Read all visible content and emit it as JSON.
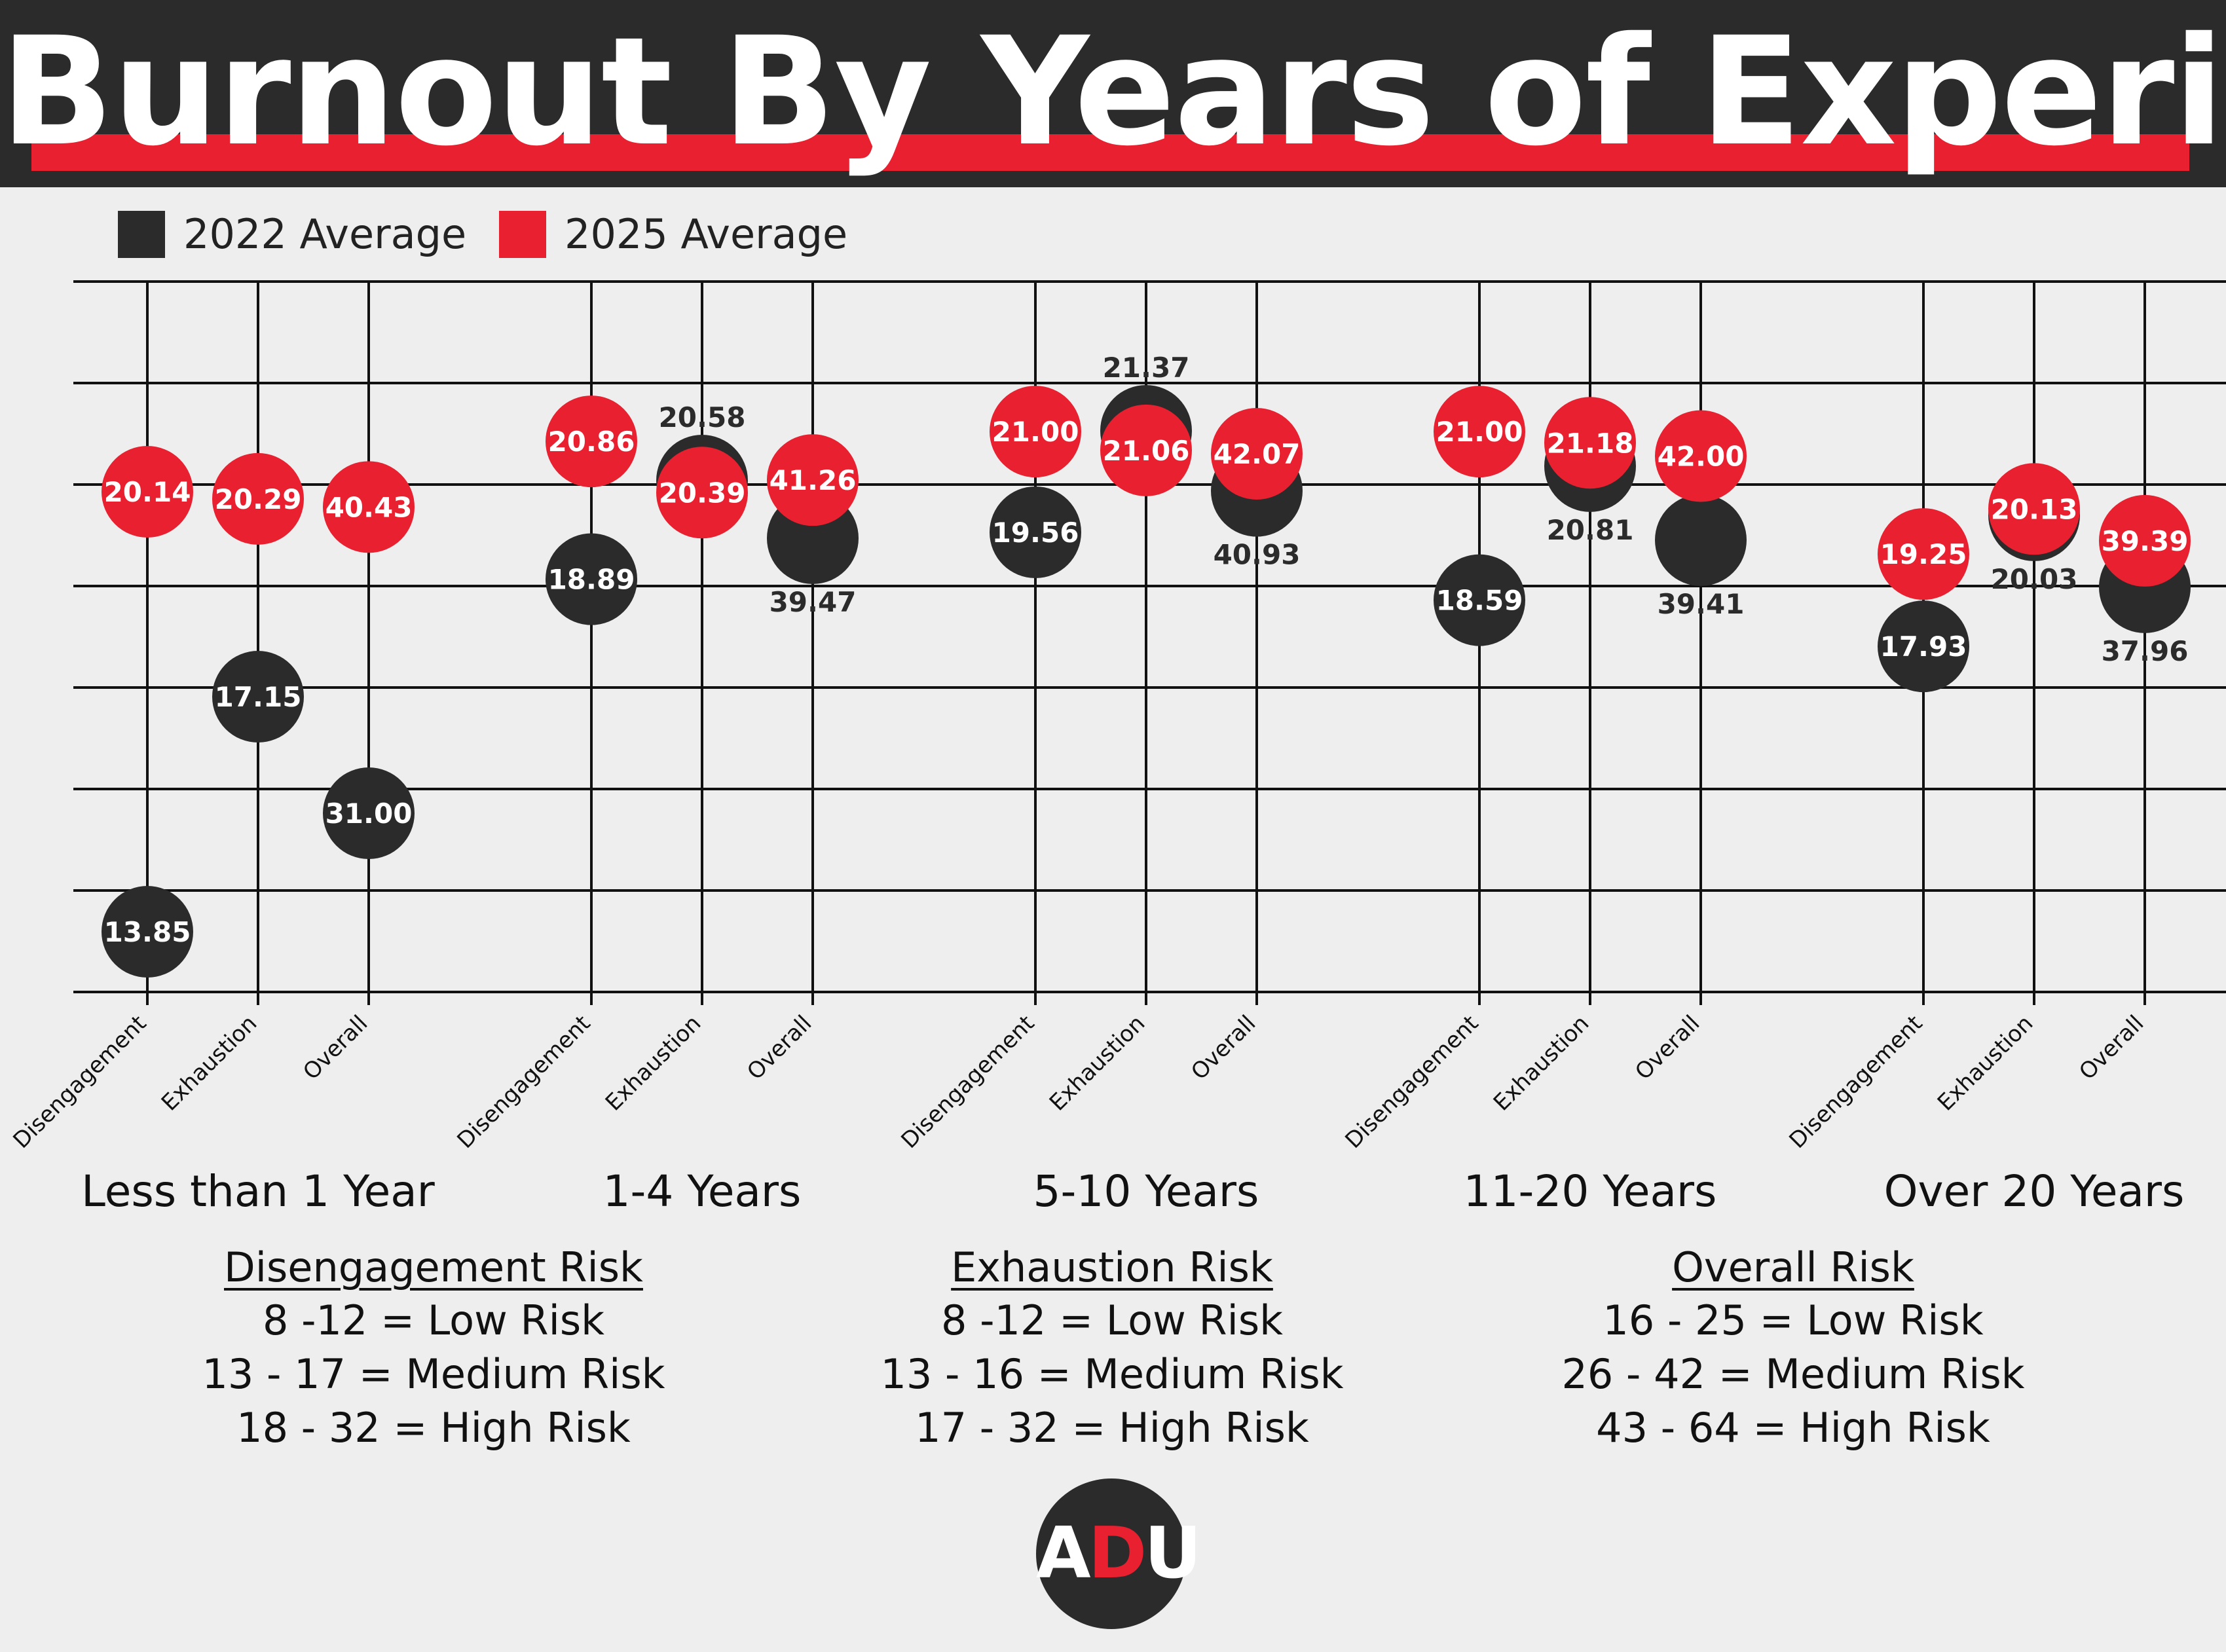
{
  "title": "Burnout By Years of Experience",
  "legend": {
    "items": [
      {
        "label": "2022 Average",
        "color": "#2b2b2b"
      },
      {
        "label": "2025 Average",
        "color": "#e8202f"
      }
    ]
  },
  "colors": {
    "dark": "#2b2b2b",
    "red": "#e8202f",
    "background": "#eeeeee",
    "white": "#ffffff"
  },
  "chart_data": {
    "type": "scatter",
    "title": "Burnout By Years of Experience",
    "groups": [
      "Less than 1 Year",
      "1-4 Years",
      "5-10 Years",
      "11-20 Years",
      "Over 20 Years"
    ],
    "measures": [
      "Disengagement",
      "Exhaustion",
      "Overall"
    ],
    "grid": true,
    "legend_position": "top-left",
    "series": [
      {
        "name": "2022 Average",
        "color": "#2b2b2b",
        "values": [
          [
            13.85,
            17.15,
            31.0
          ],
          [
            18.89,
            20.58,
            39.47
          ],
          [
            19.56,
            21.37,
            40.93
          ],
          [
            18.59,
            20.81,
            39.41
          ],
          [
            17.93,
            20.03,
            37.96
          ]
        ]
      },
      {
        "name": "2025 Average",
        "color": "#e8202f",
        "values": [
          [
            20.14,
            20.29,
            40.43
          ],
          [
            20.86,
            20.39,
            41.26
          ],
          [
            21.0,
            21.06,
            42.07
          ],
          [
            21.0,
            21.18,
            42.0
          ],
          [
            19.25,
            20.13,
            39.39
          ]
        ]
      }
    ]
  },
  "risk_legend": [
    {
      "title": "Disengagement Risk",
      "lines": [
        "8 -12 = Low Risk",
        "13 - 17 = Medium Risk",
        "18 - 32 = High Risk"
      ]
    },
    {
      "title": "Exhaustion Risk",
      "lines": [
        "8 -12 = Low Risk",
        "13 - 16 = Medium Risk",
        "17 - 32 = High Risk"
      ]
    },
    {
      "title": "Overall Risk",
      "lines": [
        "16 - 25 = Low Risk",
        "26 - 42 = Medium Risk",
        "43 - 64 = High Risk"
      ]
    }
  ],
  "logo": {
    "letters": [
      "A",
      "D",
      "U"
    ]
  }
}
